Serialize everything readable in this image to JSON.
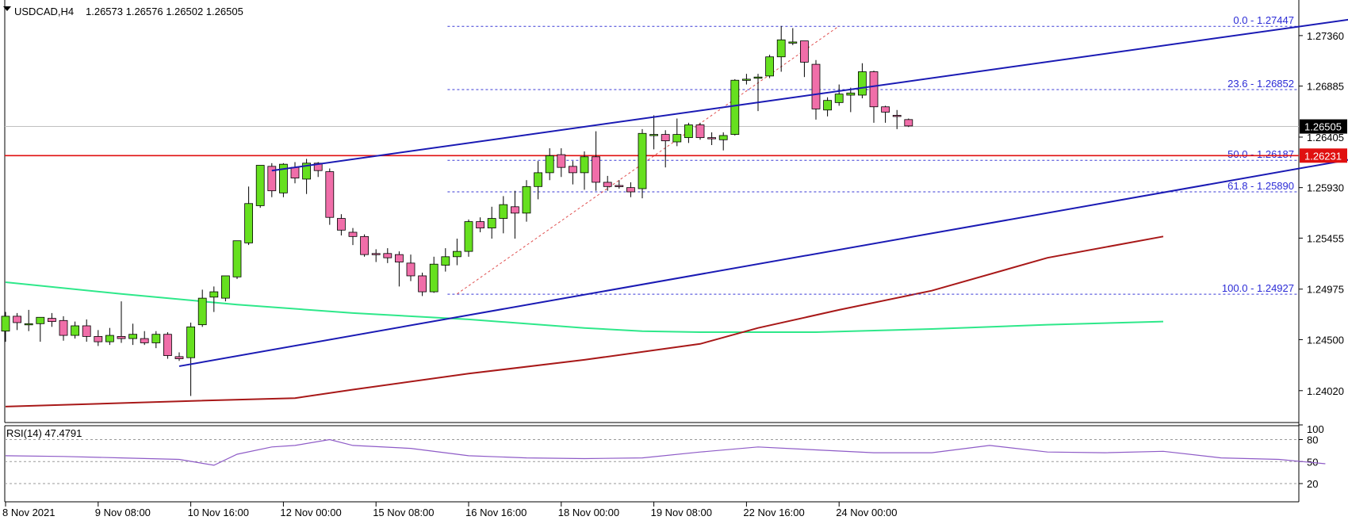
{
  "header": {
    "symbol": "USDCAD,H4",
    "ohlc": "1.26573 1.26576 1.26502 1.26505",
    "rsi_label": "RSI(14) 47.4791"
  },
  "colors": {
    "bull": "#66e01f",
    "bear": "#f06ea9",
    "channel": "#1a1ab4",
    "fib": "#3a3ad6",
    "ma_fast": "#2ee88a",
    "ma_slow": "#a81818",
    "support": "#e01010",
    "rsi": "#8e5bc7",
    "current_price_bg": "#000000"
  },
  "chart_data": {
    "type": "candlestick",
    "symbol": "USDCAD",
    "timeframe": "H4",
    "ylim": [
      1.2375,
      1.2765
    ],
    "y_ticks": [
      "1.27360",
      "1.26885",
      "1.26405",
      "1.25930",
      "1.25455",
      "1.24975",
      "1.24500",
      "1.24020"
    ],
    "x_ticks": [
      "8 Nov 2021",
      "9 Nov 08:00",
      "10 Nov 16:00",
      "12 Nov 00:00",
      "15 Nov 08:00",
      "16 Nov 16:00",
      "18 Nov 00:00",
      "19 Nov 08:00",
      "22 Nov 16:00",
      "24 Nov 00:00"
    ],
    "current_price": "1.26505",
    "support_level": "1.26231",
    "candles": [
      {
        "o": 1.2458,
        "h": 1.2476,
        "l": 1.2448,
        "c": 1.2472
      },
      {
        "o": 1.2472,
        "h": 1.2475,
        "l": 1.2459,
        "c": 1.2466
      },
      {
        "o": 1.2465,
        "h": 1.2478,
        "l": 1.2458,
        "c": 1.2465
      },
      {
        "o": 1.2465,
        "h": 1.247,
        "l": 1.2448,
        "c": 1.2471
      },
      {
        "o": 1.247,
        "h": 1.2475,
        "l": 1.2462,
        "c": 1.2467
      },
      {
        "o": 1.2468,
        "h": 1.2472,
        "l": 1.2449,
        "c": 1.2454
      },
      {
        "o": 1.2454,
        "h": 1.2467,
        "l": 1.2451,
        "c": 1.2463
      },
      {
        "o": 1.2463,
        "h": 1.2469,
        "l": 1.2448,
        "c": 1.2453
      },
      {
        "o": 1.2453,
        "h": 1.2459,
        "l": 1.2444,
        "c": 1.2448
      },
      {
        "o": 1.2448,
        "h": 1.2461,
        "l": 1.2445,
        "c": 1.2454
      },
      {
        "o": 1.2453,
        "h": 1.2486,
        "l": 1.2447,
        "c": 1.2451
      },
      {
        "o": 1.2451,
        "h": 1.2465,
        "l": 1.2445,
        "c": 1.2455
      },
      {
        "o": 1.2451,
        "h": 1.2458,
        "l": 1.2445,
        "c": 1.2447
      },
      {
        "o": 1.2447,
        "h": 1.2458,
        "l": 1.2442,
        "c": 1.2455
      },
      {
        "o": 1.2455,
        "h": 1.2457,
        "l": 1.2432,
        "c": 1.2435
      },
      {
        "o": 1.2434,
        "h": 1.2438,
        "l": 1.243,
        "c": 1.2432
      },
      {
        "o": 1.2433,
        "h": 1.2466,
        "l": 1.2397,
        "c": 1.2462
      },
      {
        "o": 1.2464,
        "h": 1.2497,
        "l": 1.2462,
        "c": 1.2489
      },
      {
        "o": 1.249,
        "h": 1.25,
        "l": 1.2476,
        "c": 1.2495
      },
      {
        "o": 1.2489,
        "h": 1.251,
        "l": 1.2486,
        "c": 1.251
      },
      {
        "o": 1.2509,
        "h": 1.2543,
        "l": 1.2507,
        "c": 1.2543
      },
      {
        "o": 1.2541,
        "h": 1.2594,
        "l": 1.2539,
        "c": 1.2578
      },
      {
        "o": 1.2576,
        "h": 1.2614,
        "l": 1.2574,
        "c": 1.2614
      },
      {
        "o": 1.2613,
        "h": 1.2616,
        "l": 1.2584,
        "c": 1.259
      },
      {
        "o": 1.2588,
        "h": 1.2616,
        "l": 1.2584,
        "c": 1.2615
      },
      {
        "o": 1.2612,
        "h": 1.2617,
        "l": 1.2597,
        "c": 1.2602
      },
      {
        "o": 1.2601,
        "h": 1.262,
        "l": 1.2587,
        "c": 1.2616
      },
      {
        "o": 1.2616,
        "h": 1.2617,
        "l": 1.2603,
        "c": 1.2609
      },
      {
        "o": 1.2608,
        "h": 1.2611,
        "l": 1.2558,
        "c": 1.2565
      },
      {
        "o": 1.2564,
        "h": 1.2568,
        "l": 1.2548,
        "c": 1.2553
      },
      {
        "o": 1.2551,
        "h": 1.2555,
        "l": 1.2539,
        "c": 1.2547
      },
      {
        "o": 1.2547,
        "h": 1.2549,
        "l": 1.2528,
        "c": 1.253
      },
      {
        "o": 1.2531,
        "h": 1.2535,
        "l": 1.2523,
        "c": 1.253
      },
      {
        "o": 1.2531,
        "h": 1.2536,
        "l": 1.2522,
        "c": 1.2527
      },
      {
        "o": 1.253,
        "h": 1.2533,
        "l": 1.25,
        "c": 1.2523
      },
      {
        "o": 1.2522,
        "h": 1.253,
        "l": 1.2505,
        "c": 1.251
      },
      {
        "o": 1.251,
        "h": 1.2513,
        "l": 1.2491,
        "c": 1.2495
      },
      {
        "o": 1.2495,
        "h": 1.2528,
        "l": 1.2494,
        "c": 1.2521
      },
      {
        "o": 1.252,
        "h": 1.2536,
        "l": 1.2514,
        "c": 1.2528
      },
      {
        "o": 1.2528,
        "h": 1.2545,
        "l": 1.252,
        "c": 1.2533
      },
      {
        "o": 1.2533,
        "h": 1.2563,
        "l": 1.2528,
        "c": 1.2561
      },
      {
        "o": 1.2561,
        "h": 1.2565,
        "l": 1.2551,
        "c": 1.2555
      },
      {
        "o": 1.2555,
        "h": 1.2575,
        "l": 1.2545,
        "c": 1.2564
      },
      {
        "o": 1.2564,
        "h": 1.2585,
        "l": 1.255,
        "c": 1.2577
      },
      {
        "o": 1.2575,
        "h": 1.259,
        "l": 1.2545,
        "c": 1.2569
      },
      {
        "o": 1.2569,
        "h": 1.26,
        "l": 1.2561,
        "c": 1.2594
      },
      {
        "o": 1.2594,
        "h": 1.2618,
        "l": 1.2582,
        "c": 1.2607
      },
      {
        "o": 1.2607,
        "h": 1.263,
        "l": 1.26,
        "c": 1.2623
      },
      {
        "o": 1.2624,
        "h": 1.263,
        "l": 1.2603,
        "c": 1.2612
      },
      {
        "o": 1.2613,
        "h": 1.2618,
        "l": 1.2596,
        "c": 1.2607
      },
      {
        "o": 1.2607,
        "h": 1.2627,
        "l": 1.2591,
        "c": 1.2622
      },
      {
        "o": 1.2622,
        "h": 1.2646,
        "l": 1.259,
        "c": 1.2598
      },
      {
        "o": 1.2598,
        "h": 1.2604,
        "l": 1.259,
        "c": 1.2594
      },
      {
        "o": 1.2595,
        "h": 1.26,
        "l": 1.2592,
        "c": 1.2594
      },
      {
        "o": 1.2593,
        "h": 1.2598,
        "l": 1.2584,
        "c": 1.2589
      },
      {
        "o": 1.2592,
        "h": 1.2648,
        "l": 1.2583,
        "c": 1.2644
      },
      {
        "o": 1.2643,
        "h": 1.2661,
        "l": 1.2629,
        "c": 1.2643
      },
      {
        "o": 1.2643,
        "h": 1.2647,
        "l": 1.2612,
        "c": 1.2637
      },
      {
        "o": 1.2636,
        "h": 1.2658,
        "l": 1.2632,
        "c": 1.2643
      },
      {
        "o": 1.264,
        "h": 1.2654,
        "l": 1.2635,
        "c": 1.2652
      },
      {
        "o": 1.2652,
        "h": 1.2654,
        "l": 1.2638,
        "c": 1.264
      },
      {
        "o": 1.264,
        "h": 1.2645,
        "l": 1.2633,
        "c": 1.2639
      },
      {
        "o": 1.2638,
        "h": 1.2645,
        "l": 1.2628,
        "c": 1.2642
      },
      {
        "o": 1.2643,
        "h": 1.2695,
        "l": 1.2642,
        "c": 1.2694
      },
      {
        "o": 1.2694,
        "h": 1.27,
        "l": 1.269,
        "c": 1.2695
      },
      {
        "o": 1.2696,
        "h": 1.27,
        "l": 1.2665,
        "c": 1.2697
      },
      {
        "o": 1.2698,
        "h": 1.2718,
        "l": 1.2696,
        "c": 1.2716
      },
      {
        "o": 1.2716,
        "h": 1.2745,
        "l": 1.2702,
        "c": 1.2732
      },
      {
        "o": 1.273,
        "h": 1.2743,
        "l": 1.2727,
        "c": 1.273
      },
      {
        "o": 1.2731,
        "h": 1.2731,
        "l": 1.2697,
        "c": 1.2711
      },
      {
        "o": 1.2709,
        "h": 1.2713,
        "l": 1.2657,
        "c": 1.2667
      },
      {
        "o": 1.2666,
        "h": 1.2678,
        "l": 1.266,
        "c": 1.2675
      },
      {
        "o": 1.2673,
        "h": 1.269,
        "l": 1.267,
        "c": 1.2681
      },
      {
        "o": 1.268,
        "h": 1.2687,
        "l": 1.2664,
        "c": 1.2682
      },
      {
        "o": 1.268,
        "h": 1.271,
        "l": 1.2677,
        "c": 1.2702
      },
      {
        "o": 1.2702,
        "h": 1.2703,
        "l": 1.2654,
        "c": 1.2669
      },
      {
        "o": 1.2669,
        "h": 1.267,
        "l": 1.2654,
        "c": 1.2664
      },
      {
        "o": 1.2661,
        "h": 1.2666,
        "l": 1.2648,
        "c": 1.266
      },
      {
        "o": 1.2657,
        "h": 1.2658,
        "l": 1.265,
        "c": 1.2651
      }
    ],
    "channel_upper": [
      [
        23,
        1.2609
      ],
      [
        116,
        1.2751
      ]
    ],
    "channel_lower": [
      [
        15,
        1.2425
      ],
      [
        131,
        1.2648
      ]
    ],
    "fib_levels": [
      {
        "label": "0.0 - 1.27447",
        "value": 1.27447
      },
      {
        "label": "23.6 - 1.26852",
        "value": 1.26852
      },
      {
        "label": "50.0 - 1.26187",
        "value": 1.26187
      },
      {
        "label": "61.8 - 1.25890",
        "value": 1.2589
      },
      {
        "label": "100.0 - 1.24927",
        "value": 1.24927
      }
    ],
    "fib_start_index": 39,
    "fib_diagonal": [
      [
        39,
        1.2493
      ],
      [
        72,
        1.2745
      ]
    ],
    "ma_fast": [
      [
        0,
        1.2504
      ],
      [
        10,
        1.2493
      ],
      [
        20,
        1.2483
      ],
      [
        30,
        1.2475
      ],
      [
        40,
        1.2469
      ],
      [
        50,
        1.2461
      ],
      [
        55,
        1.2458
      ],
      [
        60,
        1.2457
      ],
      [
        70,
        1.2457
      ],
      [
        80,
        1.246
      ],
      [
        90,
        1.2464
      ],
      [
        100,
        1.2467
      ]
    ],
    "ma_slow": [
      [
        0,
        1.2387
      ],
      [
        15,
        1.2392
      ],
      [
        25,
        1.2395
      ],
      [
        30,
        1.2403
      ],
      [
        40,
        1.2418
      ],
      [
        50,
        1.2431
      ],
      [
        60,
        1.2446
      ],
      [
        65,
        1.2461
      ],
      [
        72,
        1.2478
      ],
      [
        80,
        1.2496
      ],
      [
        90,
        1.2527
      ],
      [
        100,
        1.2547
      ]
    ],
    "rsi": {
      "period": 14,
      "value": 47.4791,
      "levels": [
        100,
        80,
        50,
        20
      ],
      "points": [
        [
          0,
          58
        ],
        [
          5,
          57
        ],
        [
          10,
          55
        ],
        [
          15,
          53
        ],
        [
          18,
          45
        ],
        [
          20,
          60
        ],
        [
          23,
          70
        ],
        [
          25,
          72
        ],
        [
          28,
          80
        ],
        [
          30,
          72
        ],
        [
          35,
          68
        ],
        [
          40,
          58
        ],
        [
          45,
          55
        ],
        [
          50,
          54
        ],
        [
          55,
          55
        ],
        [
          60,
          63
        ],
        [
          65,
          70
        ],
        [
          70,
          66
        ],
        [
          75,
          62
        ],
        [
          80,
          62
        ],
        [
          85,
          72
        ],
        [
          90,
          63
        ],
        [
          95,
          62
        ],
        [
          100,
          64
        ],
        [
          105,
          55
        ],
        [
          110,
          53
        ],
        [
          114,
          47
        ]
      ]
    }
  }
}
